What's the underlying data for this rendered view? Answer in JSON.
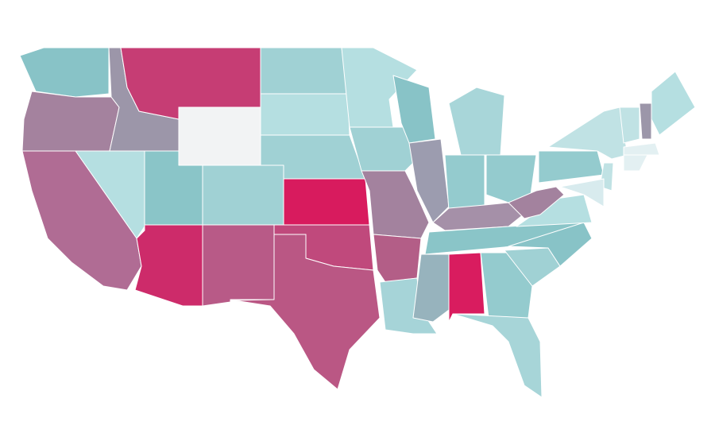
{
  "map": {
    "regions": [
      {
        "color": "#88c3c7"
      },
      {
        "color": "#a4829e"
      },
      {
        "color": "#9c96a9"
      },
      {
        "color": "#c63d74"
      },
      {
        "color": "#f2f3f4"
      },
      {
        "color": "#b5dfe1"
      },
      {
        "color": "#b06c94"
      },
      {
        "color": "#8ac5c8"
      },
      {
        "color": "#a0d1d4"
      },
      {
        "color": "#cd2b6a"
      },
      {
        "color": "#b85a87"
      },
      {
        "color": "#a0d1d4"
      },
      {
        "color": "#b5dfe1"
      },
      {
        "color": "#a0d1d4"
      },
      {
        "color": "#d81b5e"
      },
      {
        "color": "#c0497c"
      },
      {
        "color": "#ba5784"
      },
      {
        "color": "#b5dfe1"
      },
      {
        "color": "#a0d1d4"
      },
      {
        "color": "#a3829e"
      },
      {
        "color": "#b35e87"
      },
      {
        "color": "#a6d4d8"
      },
      {
        "color": "#88c3c7"
      },
      {
        "color": "#9c9caf"
      },
      {
        "color": "#a8d6d9"
      },
      {
        "color": "#94cbce"
      },
      {
        "color": "#94cbce"
      },
      {
        "color": "#a590a8"
      },
      {
        "color": "#8ac5c8"
      },
      {
        "color": "#97b3bd"
      },
      {
        "color": "#d91c5f"
      },
      {
        "color": "#94cbce"
      },
      {
        "color": "#a7d5d8"
      },
      {
        "color": "#a0d1d4"
      },
      {
        "color": "#88c3c7"
      },
      {
        "color": "#b5dfe1"
      },
      {
        "color": "#a3829e"
      },
      {
        "color": "#94cbce"
      },
      {
        "color": "#c0e2e4"
      },
      {
        "color": "#c0e2e4"
      },
      {
        "color": "#9c96a9"
      },
      {
        "color": "#b5dfe1"
      },
      {
        "color": "#e3f0f2"
      },
      {
        "color": "#e3f0f2"
      },
      {
        "color": "#c0e2e4"
      },
      {
        "color": "#d8ebee"
      }
    ]
  }
}
